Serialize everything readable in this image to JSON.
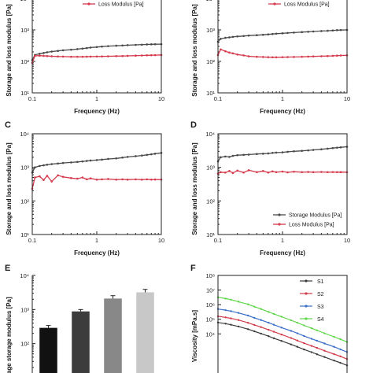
{
  "panel_labels": [
    "",
    "",
    "C",
    "D",
    "E",
    "F"
  ],
  "legend_labels": {
    "storage": "Storage Modulus [Pa]",
    "loss": "Loss Modulus [Pa]"
  },
  "axis_labels": {
    "frequency": "Frequency (Hz)",
    "moduli": "Storage and loss modulus [Pa]",
    "avg_storage": "Average storage modulus [Pa]",
    "viscosity": "Viscosity [mPa.s]"
  },
  "colors": {
    "storage": "#4a4a4a",
    "loss": "#d6394b",
    "S1": "#3a3a3a",
    "S2": "#d23b4a",
    "S3": "#3b6fc9",
    "S4": "#5fd64a",
    "bars": [
      "#111111",
      "#3c3c3c",
      "#888888",
      "#c8c8c8"
    ]
  },
  "chart_data": [
    {
      "panel": "",
      "type": "line",
      "xscale": "log",
      "yscale": "log",
      "xlim": [
        0.1,
        10
      ],
      "ylim": [
        10,
        10000
      ],
      "xticks": [
        "0.1",
        "1",
        "10"
      ],
      "yticks": [
        "10¹",
        "10²",
        "10³",
        "10⁴"
      ],
      "xlabel": "Frequency (Hz)",
      "ylabel": "Storage and loss modulus [Pa]",
      "legend": [
        "Loss Modulus [Pa]"
      ],
      "legend_position": "top",
      "x": [
        0.1,
        0.11,
        0.13,
        0.15,
        0.17,
        0.2,
        0.25,
        0.3,
        0.4,
        0.5,
        0.6,
        0.7,
        0.8,
        1,
        1.2,
        1.5,
        2,
        2.5,
        3,
        4,
        5,
        6,
        7,
        8,
        10
      ],
      "series": [
        {
          "name": "Storage Modulus [Pa]",
          "values": [
            110,
            160,
            175,
            185,
            195,
            205,
            215,
            225,
            235,
            245,
            255,
            265,
            275,
            285,
            295,
            305,
            315,
            320,
            328,
            335,
            340,
            345,
            348,
            350,
            352
          ]
        },
        {
          "name": "Loss Modulus [Pa]",
          "values": [
            90,
            150,
            152,
            150,
            148,
            145,
            143,
            142,
            140,
            140,
            140,
            141,
            142,
            143,
            144,
            145,
            147,
            148,
            150,
            152,
            154,
            156,
            157,
            158,
            160
          ]
        }
      ]
    },
    {
      "panel": "",
      "type": "line",
      "xscale": "log",
      "yscale": "log",
      "xlim": [
        0.1,
        10
      ],
      "ylim": [
        10,
        10000
      ],
      "xticks": [
        "0.1",
        "1",
        "10"
      ],
      "yticks": [
        "10¹",
        "10²",
        "10³",
        "10⁴"
      ],
      "xlabel": "Frequency (Hz)",
      "ylabel": "Storage and loss modulus [Pa]",
      "legend": [
        "Loss Modulus [Pa]"
      ],
      "legend_position": "top",
      "x": [
        0.1,
        0.11,
        0.13,
        0.15,
        0.17,
        0.2,
        0.25,
        0.3,
        0.4,
        0.5,
        0.6,
        0.7,
        0.8,
        1,
        1.2,
        1.5,
        2,
        2.5,
        3,
        4,
        5,
        6,
        7,
        8,
        10
      ],
      "series": [
        {
          "name": "Storage Modulus [Pa]",
          "values": [
            420,
            520,
            560,
            580,
            600,
            620,
            640,
            660,
            680,
            700,
            720,
            740,
            760,
            780,
            800,
            820,
            850,
            870,
            890,
            920,
            940,
            960,
            980,
            990,
            1000
          ]
        },
        {
          "name": "Loss Modulus [Pa]",
          "values": [
            160,
            240,
            210,
            190,
            180,
            165,
            155,
            145,
            140,
            138,
            136,
            135,
            135,
            136,
            137,
            138,
            140,
            142,
            144,
            146,
            148,
            150,
            152,
            154,
            156
          ]
        }
      ]
    },
    {
      "panel": "C",
      "type": "line",
      "xscale": "log",
      "yscale": "log",
      "xlim": [
        0.1,
        10
      ],
      "ylim": [
        10,
        10000
      ],
      "xticks": [
        "0.1",
        "1",
        "10"
      ],
      "yticks": [
        "10¹",
        "10²",
        "10³",
        "10⁴"
      ],
      "xlabel": "Frequency (Hz)",
      "ylabel": "Storage and loss modulus [Pa]",
      "x": [
        0.1,
        0.11,
        0.13,
        0.15,
        0.17,
        0.2,
        0.25,
        0.3,
        0.4,
        0.5,
        0.6,
        0.7,
        0.8,
        1,
        1.2,
        1.5,
        2,
        2.5,
        3,
        4,
        5,
        6,
        7,
        8,
        10
      ],
      "series": [
        {
          "name": "Storage Modulus [Pa]",
          "values": [
            700,
            1000,
            1100,
            1150,
            1200,
            1250,
            1300,
            1350,
            1400,
            1450,
            1500,
            1550,
            1600,
            1650,
            1700,
            1780,
            1850,
            1950,
            2050,
            2150,
            2250,
            2350,
            2450,
            2550,
            2700
          ]
        },
        {
          "name": "Loss Modulus [Pa]",
          "values": [
            230,
            500,
            540,
            420,
            560,
            380,
            580,
            520,
            480,
            460,
            500,
            440,
            470,
            430,
            440,
            450,
            430,
            440,
            430,
            440,
            430,
            440,
            430,
            435,
            430
          ]
        }
      ]
    },
    {
      "panel": "D",
      "type": "line",
      "xscale": "log",
      "yscale": "log",
      "xlim": [
        0.1,
        10
      ],
      "ylim": [
        10,
        10000
      ],
      "xticks": [
        "0.1",
        "1",
        "10"
      ],
      "yticks": [
        "10¹",
        "10²",
        "10³",
        "10⁴"
      ],
      "xlabel": "Frequency (Hz)",
      "ylabel": "Storage and loss modulus [Pa]",
      "legend": [
        "Storage Modulus [Pa]",
        "Loss Modulus [Pa]"
      ],
      "legend_position": "lower-right",
      "x": [
        0.1,
        0.11,
        0.13,
        0.15,
        0.17,
        0.2,
        0.25,
        0.3,
        0.4,
        0.5,
        0.6,
        0.7,
        0.8,
        1,
        1.2,
        1.5,
        2,
        2.5,
        3,
        4,
        5,
        6,
        7,
        8,
        10
      ],
      "series": [
        {
          "name": "Storage Modulus [Pa]",
          "values": [
            1500,
            2000,
            2100,
            2050,
            2200,
            2300,
            2350,
            2400,
            2500,
            2550,
            2600,
            2700,
            2750,
            2800,
            2900,
            3000,
            3100,
            3200,
            3300,
            3450,
            3600,
            3750,
            3850,
            3950,
            4100
          ]
        },
        {
          "name": "Loss Modulus [Pa]",
          "values": [
            650,
            720,
            700,
            780,
            680,
            800,
            700,
            820,
            720,
            780,
            700,
            760,
            720,
            750,
            710,
            740,
            720,
            730,
            720,
            730,
            720,
            725,
            720,
            722,
            720
          ]
        }
      ]
    },
    {
      "panel": "E",
      "type": "bar",
      "yscale": "log",
      "ylim": [
        10,
        10000
      ],
      "yticks": [
        "10²",
        "10³",
        "10⁴"
      ],
      "ylabel": "Average storage modulus [Pa]",
      "values": [
        290,
        880,
        2100,
        3200
      ],
      "errors": [
        50,
        120,
        450,
        700
      ]
    },
    {
      "panel": "F",
      "type": "line",
      "xscale": "log",
      "yscale": "log",
      "ylim": [
        10,
        100000000
      ],
      "yticks": [
        "10⁸",
        "10⁷",
        "10⁶",
        "10⁵",
        "10⁴"
      ],
      "ylabel": "Viscosity [mPa.s]",
      "legend": [
        "S1",
        "S2",
        "S3",
        "S4"
      ],
      "legend_position": "top-right",
      "x": [
        0.1,
        0.15,
        0.2,
        0.3,
        0.5,
        0.7,
        1,
        1.5,
        2,
        3,
        5,
        7,
        10,
        15,
        20,
        30,
        50,
        70,
        100
      ],
      "series": [
        {
          "name": "S1",
          "values": [
            60000,
            50000,
            42000,
            32000,
            21000,
            15000,
            10500,
            7000,
            5000,
            3300,
            1900,
            1300,
            860,
            560,
            400,
            260,
            150,
            105,
            70
          ]
        },
        {
          "name": "S2",
          "values": [
            160000,
            135000,
            115000,
            88000,
            57000,
            41000,
            29000,
            19000,
            14000,
            9000,
            5200,
            3500,
            2300,
            1500,
            1100,
            700,
            410,
            290,
            190
          ]
        },
        {
          "name": "S3",
          "values": [
            500000,
            420000,
            360000,
            270000,
            180000,
            125000,
            88000,
            58000,
            42000,
            27000,
            16000,
            11000,
            7200,
            4600,
            3400,
            2200,
            1300,
            880,
            580
          ]
        },
        {
          "name": "S4",
          "values": [
            3200000,
            2600000,
            2200000,
            1600000,
            1050000,
            730000,
            500000,
            320000,
            230000,
            150000,
            85000,
            58000,
            38000,
            24000,
            17500,
            11000,
            6300,
            4300,
            2800
          ]
        }
      ]
    }
  ]
}
